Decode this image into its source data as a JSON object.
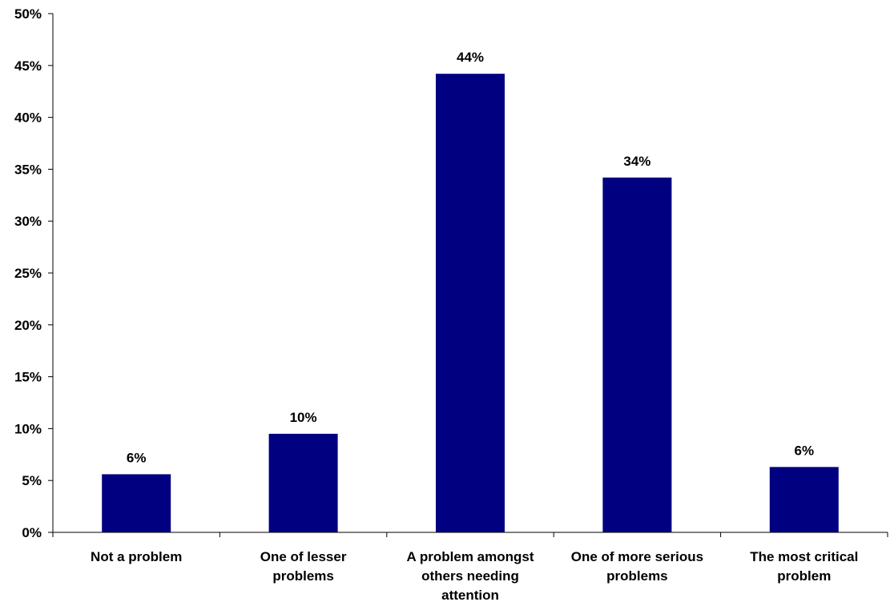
{
  "chart_data": {
    "type": "bar",
    "title": "",
    "xlabel": "",
    "ylabel": "",
    "categories": [
      [
        "Not a problem"
      ],
      [
        "One of lesser",
        "problems"
      ],
      [
        "A problem amongst",
        "others needing",
        "attention"
      ],
      [
        "One of more serious",
        "problems"
      ],
      [
        "The most critical",
        "problem"
      ]
    ],
    "values": [
      5.6,
      9.5,
      44.2,
      34.2,
      6.3
    ],
    "data_labels": [
      "6%",
      "10%",
      "44%",
      "34%",
      "6%"
    ],
    "ylim": [
      0,
      50
    ],
    "yticks": [
      0,
      5,
      10,
      15,
      20,
      25,
      30,
      35,
      40,
      45,
      50
    ],
    "ytick_labels": [
      "0%",
      "5%",
      "10%",
      "15%",
      "20%",
      "25%",
      "30%",
      "35%",
      "40%",
      "45%",
      "50%"
    ],
    "grid": false,
    "legend": "none",
    "colors": {
      "bar": "#000080",
      "axis": "#000000"
    }
  }
}
